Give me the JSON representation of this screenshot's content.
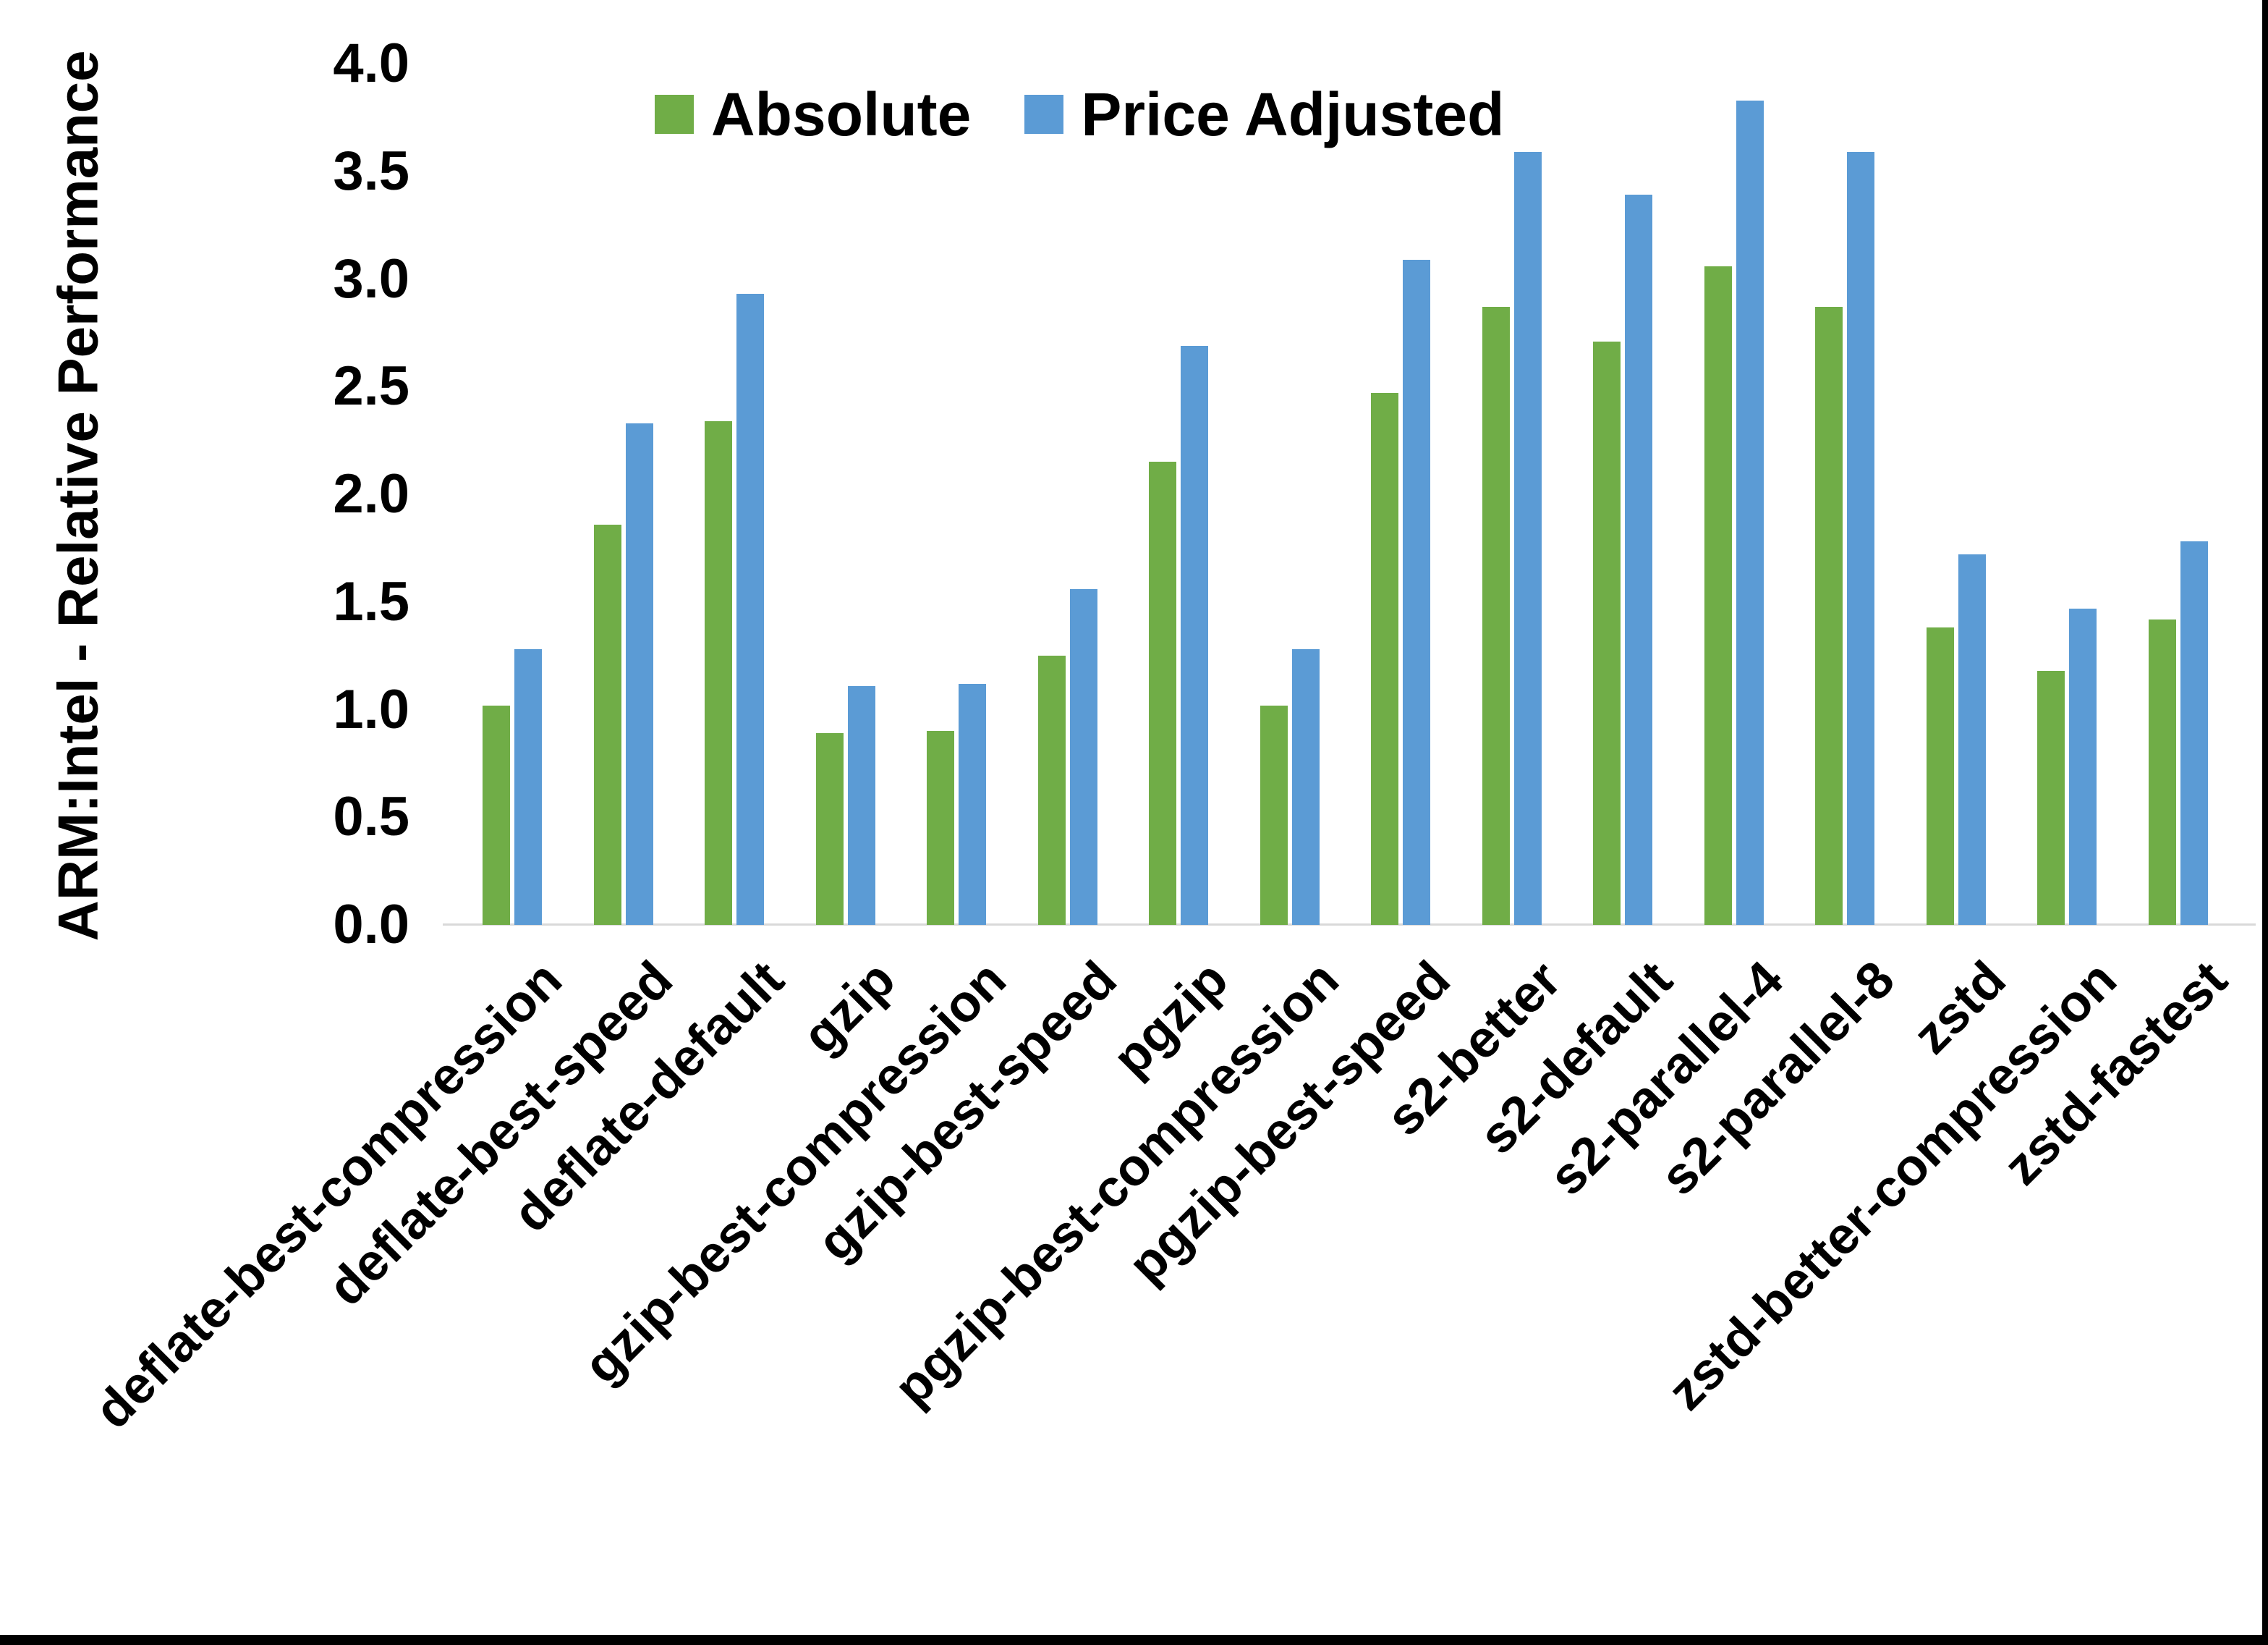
{
  "chart_data": {
    "type": "bar",
    "title": "",
    "y_axis_title": "ARM:Intel - Relative Performance",
    "x_axis_title": "",
    "categories": [
      "deflate-best-compression",
      "deflate-best-speed",
      "deflate-default",
      "gzip",
      "gzip-best-compression",
      "gzip-best-speed",
      "pgzip",
      "pgzip-best-compression",
      "pgzip-best-speed",
      "s2-better",
      "s2-default",
      "s2-parallel-4",
      "s2-parallel-8",
      "zstd",
      "zstd-better-compression",
      "zstd-fastest"
    ],
    "series": [
      {
        "name": "Absolute",
        "color": "#70AD47",
        "values": [
          1.02,
          1.86,
          2.34,
          0.89,
          0.9,
          1.25,
          2.15,
          1.02,
          2.47,
          2.87,
          2.71,
          3.06,
          2.87,
          1.38,
          1.18,
          1.42
        ]
      },
      {
        "name": "Price Adjusted",
        "color": "#5B9BD5",
        "values": [
          1.28,
          2.33,
          2.93,
          1.11,
          1.12,
          1.56,
          2.69,
          1.28,
          3.09,
          3.59,
          3.39,
          3.83,
          3.59,
          1.72,
          1.47,
          1.78
        ]
      }
    ],
    "ylim": [
      0.0,
      4.0
    ],
    "ytick_step": 0.5,
    "ytick_labels": [
      "0.0",
      "0.5",
      "1.0",
      "1.5",
      "2.0",
      "2.5",
      "3.0",
      "3.5",
      "4.0"
    ],
    "grid": false,
    "legend_position": "top-center",
    "x_label_rotation_deg": -45
  },
  "colors": {
    "axis_line": "#D9D9D9",
    "text": "#000000",
    "frame": "#000000",
    "background": "#ffffff"
  }
}
